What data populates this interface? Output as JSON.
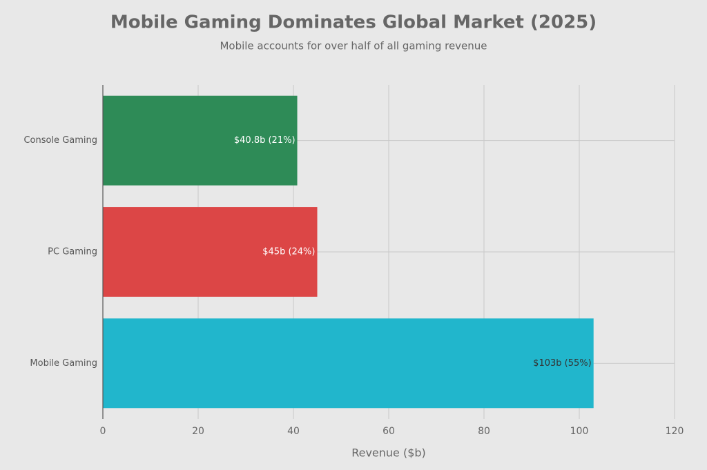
{
  "chart_data": {
    "type": "barh",
    "title": "Mobile Gaming Dominates Global Market (2025)",
    "subtitle": "Mobile accounts for over half of all gaming revenue",
    "x_label": "Revenue ($b)",
    "categories": [
      "Console Gaming",
      "PC Gaming",
      "Mobile Gaming"
    ],
    "values": [
      40.8,
      45,
      103
    ],
    "value_labels": [
      "$40.8b (21%)",
      "$45b (24%)",
      "$103b (55%)"
    ],
    "colors": [
      "#2e8b57",
      "#dc4646",
      "#21b6cc"
    ],
    "label_colors": [
      "#ffffff",
      "#ffffff",
      "#333333"
    ],
    "xlim": [
      0,
      120
    ],
    "xticks": [
      0,
      20,
      40,
      60,
      80,
      100,
      120
    ],
    "grid": true
  }
}
